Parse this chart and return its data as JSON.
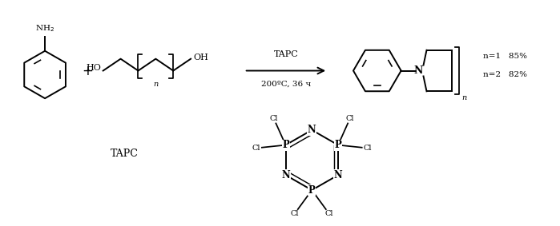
{
  "background_color": "#ffffff",
  "figure_width": 6.99,
  "figure_height": 2.83,
  "dpi": 100,
  "line_color": "#000000",
  "line_width": 1.4,
  "reagent_above": "TAPC",
  "reagent_below": "200ºC, 36 ч",
  "yield_n1": "n=1   85%",
  "yield_n2": "n=2   82%",
  "tapc_label": "TAPC"
}
